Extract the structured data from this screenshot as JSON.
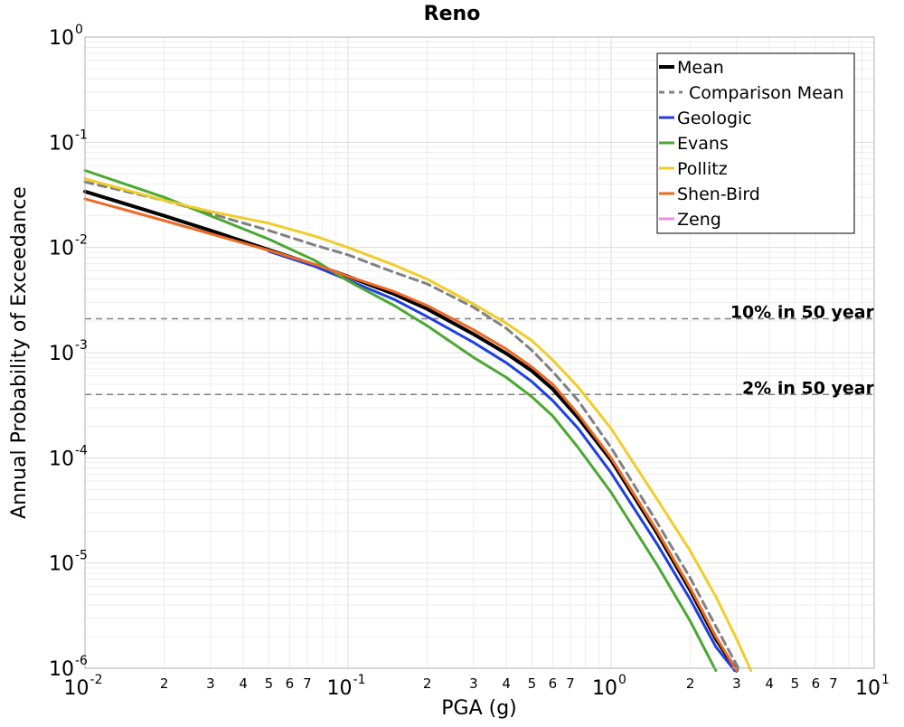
{
  "chart_data": {
    "type": "line",
    "title": "Reno",
    "xlabel": "PGA (g)",
    "ylabel": "Annual Probability of Exceedance",
    "x_scale": "log",
    "y_scale": "log",
    "xlim": [
      0.01,
      10
    ],
    "ylim": [
      1e-06,
      1
    ],
    "x_major_ticks": [
      {
        "base": "10",
        "exp": "-2",
        "value": 0.01
      },
      {
        "base": "10",
        "exp": "-1",
        "value": 0.1
      },
      {
        "base": "10",
        "exp": "0",
        "value": 1
      },
      {
        "base": "10",
        "exp": "1",
        "value": 10
      }
    ],
    "x_minor_labels": [
      "2",
      "3",
      "4",
      "5",
      "6",
      "7"
    ],
    "y_major_ticks": [
      {
        "base": "10",
        "exp": "0",
        "value": 1
      },
      {
        "base": "10",
        "exp": "-1",
        "value": 0.1
      },
      {
        "base": "10",
        "exp": "-2",
        "value": 0.01
      },
      {
        "base": "10",
        "exp": "-3",
        "value": 0.001
      },
      {
        "base": "10",
        "exp": "-4",
        "value": 0.0001
      },
      {
        "base": "10",
        "exp": "-5",
        "value": 1e-05
      },
      {
        "base": "10",
        "exp": "-6",
        "value": 1e-06
      }
    ],
    "grid": true,
    "legend_position": "top-right",
    "reference_lines": [
      {
        "label": "10% in 50 year",
        "y": 0.0021
      },
      {
        "label": "2% in 50 year",
        "y": 0.0004
      }
    ],
    "series": [
      {
        "name": "Mean",
        "color": "#000000",
        "width": 4,
        "dash": "",
        "x": [
          0.01,
          0.02,
          0.03,
          0.05,
          0.075,
          0.1,
          0.15,
          0.2,
          0.3,
          0.4,
          0.5,
          0.6,
          0.75,
          1,
          1.5,
          2,
          2.5,
          3
        ],
        "y": [
          0.034,
          0.02,
          0.0145,
          0.0095,
          0.0068,
          0.0053,
          0.0036,
          0.0026,
          0.0015,
          0.00098,
          0.00067,
          0.00045,
          0.00024,
          9.5e-05,
          1.9e-05,
          5.5e-06,
          1.9e-06,
          9.5e-07
        ]
      },
      {
        "name": "Comparison Mean",
        "color": "#808080",
        "width": 3,
        "dash": "9 6",
        "x": [
          0.01,
          0.02,
          0.03,
          0.05,
          0.075,
          0.1,
          0.15,
          0.2,
          0.3,
          0.4,
          0.5,
          0.6,
          0.75,
          1,
          1.5,
          2,
          2.5,
          3.05
        ],
        "y": [
          0.042,
          0.028,
          0.021,
          0.0145,
          0.0105,
          0.0085,
          0.0058,
          0.0045,
          0.0027,
          0.0017,
          0.00105,
          0.00066,
          0.00035,
          0.000125,
          2.4e-05,
          7.2e-06,
          2.5e-06,
          1e-06
        ]
      },
      {
        "name": "Geologic",
        "color": "#1f3fdf",
        "width": 3,
        "dash": "",
        "x": [
          0.05,
          0.075,
          0.1,
          0.15,
          0.2,
          0.3,
          0.4,
          0.5,
          0.6,
          0.75,
          1,
          1.5,
          2,
          2.5,
          2.95
        ],
        "y": [
          0.0092,
          0.0066,
          0.0049,
          0.0032,
          0.0022,
          0.00125,
          0.0008,
          0.00053,
          0.00035,
          0.00019,
          7.2e-05,
          1.5e-05,
          4.5e-06,
          1.6e-06,
          9.5e-07
        ]
      },
      {
        "name": "Evans",
        "color": "#4aa832",
        "width": 3,
        "dash": "",
        "x": [
          0.01,
          0.02,
          0.03,
          0.05,
          0.075,
          0.1,
          0.15,
          0.2,
          0.3,
          0.4,
          0.5,
          0.6,
          0.75,
          1,
          1.5,
          2,
          2.5
        ],
        "y": [
          0.054,
          0.03,
          0.02,
          0.012,
          0.0075,
          0.0048,
          0.0028,
          0.0018,
          0.0009,
          0.00058,
          0.00038,
          0.00025,
          0.000125,
          4.7e-05,
          9.5e-06,
          2.8e-06,
          9.5e-07
        ]
      },
      {
        "name": "Pollitz",
        "color": "#f0cd2a",
        "width": 3,
        "dash": "",
        "x": [
          0.01,
          0.02,
          0.03,
          0.05,
          0.075,
          0.1,
          0.15,
          0.2,
          0.3,
          0.4,
          0.5,
          0.6,
          0.75,
          1,
          1.5,
          2,
          2.5,
          3,
          3.4
        ],
        "y": [
          0.045,
          0.028,
          0.022,
          0.017,
          0.0128,
          0.01,
          0.0068,
          0.005,
          0.0029,
          0.0019,
          0.0013,
          0.00085,
          0.00047,
          0.00019,
          4e-05,
          1.3e-05,
          4.8e-06,
          1.9e-06,
          9.5e-07
        ]
      },
      {
        "name": "Shen-Bird",
        "color": "#ec6a25",
        "width": 3,
        "dash": "",
        "x": [
          0.01,
          0.02,
          0.03,
          0.05,
          0.075,
          0.1,
          0.15,
          0.2,
          0.3,
          0.4,
          0.5,
          0.6,
          0.75,
          1,
          1.5,
          2,
          2.5,
          3
        ],
        "y": [
          0.029,
          0.018,
          0.0135,
          0.0094,
          0.0069,
          0.0053,
          0.0038,
          0.0028,
          0.00165,
          0.00108,
          0.00073,
          0.0005,
          0.00026,
          0.0001,
          2e-05,
          5.8e-06,
          2e-06,
          9.5e-07
        ]
      },
      {
        "name": "Zeng",
        "color": "#ee8ee0",
        "width": 3,
        "dash": "",
        "x": [],
        "y": []
      }
    ]
  }
}
